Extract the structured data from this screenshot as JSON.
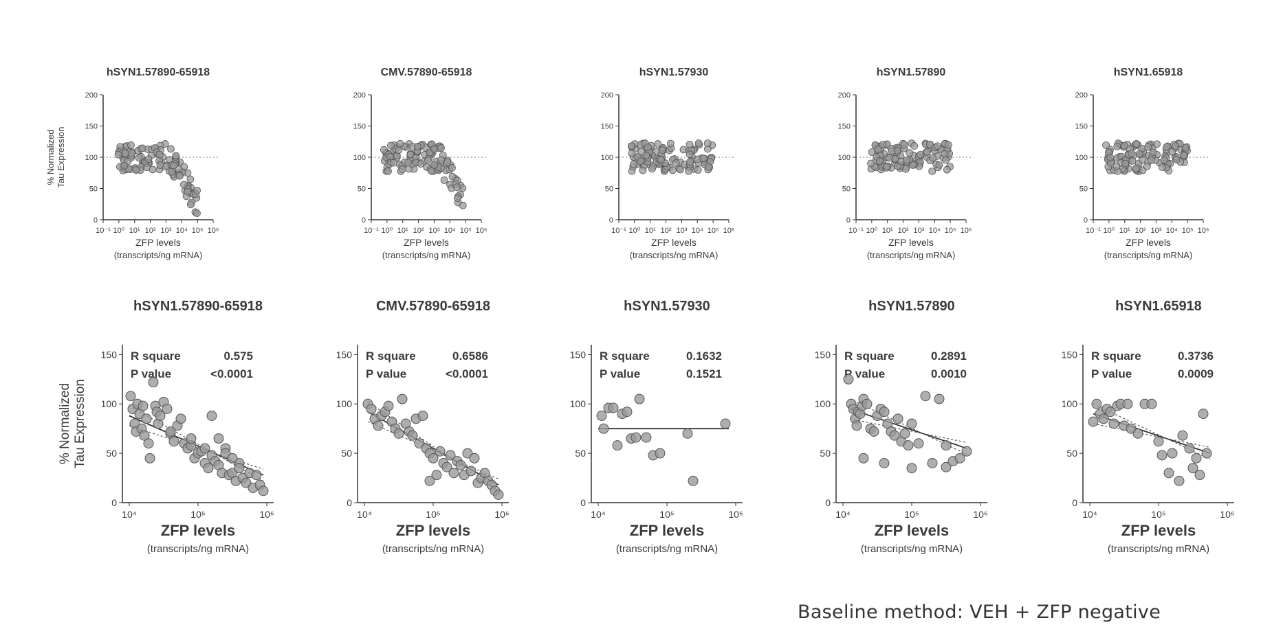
{
  "footer_text": "Baseline method: VEH + ZFP negative",
  "colors": {
    "marker_fill": "#9a9a9a",
    "marker_stroke": "#555555",
    "axis": "#333333",
    "text": "#3a3a3a"
  },
  "chart_data": [
    {
      "type": "scatter",
      "row": "top",
      "title": "hSYN1.57890-65918",
      "ylabel": "% Normalized Tau Expression",
      "xlabel": "ZFP levels",
      "xlabel_sub": "(transcripts/ng mRNA)",
      "xscale": "log",
      "xlim": [
        -1,
        6
      ],
      "ylim": [
        0,
        200
      ],
      "x_ticks": [
        "10⁻¹",
        "10⁰",
        "10¹",
        "10²",
        "10³",
        "10⁴",
        "10⁵",
        "10⁶"
      ],
      "y_ticks": [
        "0",
        "50",
        "100",
        "150",
        "200"
      ],
      "reference_line": 100,
      "x": [],
      "y": []
    },
    {
      "type": "scatter",
      "row": "top",
      "title": "CMV.57890-65918",
      "ylabel": "",
      "xlabel": "ZFP levels",
      "xlabel_sub": "(transcripts/ng mRNA)",
      "xscale": "log",
      "xlim": [
        -1,
        6
      ],
      "ylim": [
        0,
        200
      ],
      "x_ticks": [
        "10⁻¹",
        "10⁰",
        "10¹",
        "10²",
        "10³",
        "10⁴",
        "10⁵",
        "10⁶"
      ],
      "y_ticks": [
        "0",
        "50",
        "100",
        "150",
        "200"
      ],
      "reference_line": 100,
      "x": [],
      "y": []
    },
    {
      "type": "scatter",
      "row": "top",
      "title": "hSYN1.57930",
      "ylabel": "",
      "xlabel": "ZFP levels",
      "xlabel_sub": "(transcripts/ng mRNA)",
      "xscale": "log",
      "xlim": [
        -1,
        6
      ],
      "ylim": [
        0,
        200
      ],
      "x_ticks": [
        "10⁻¹",
        "10⁰",
        "10¹",
        "10²",
        "10³",
        "10⁴",
        "10⁵",
        "10⁶"
      ],
      "y_ticks": [
        "0",
        "50",
        "100",
        "150",
        "200"
      ],
      "reference_line": 100,
      "x": [],
      "y": []
    },
    {
      "type": "scatter",
      "row": "top",
      "title": "hSYN1.57890",
      "ylabel": "",
      "xlabel": "ZFP levels",
      "xlabel_sub": "(transcripts/ng mRNA)",
      "xscale": "log",
      "xlim": [
        -1,
        6
      ],
      "ylim": [
        0,
        200
      ],
      "x_ticks": [
        "10⁻¹",
        "10⁰",
        "10¹",
        "10²",
        "10³",
        "10⁴",
        "10⁵",
        "10⁶"
      ],
      "y_ticks": [
        "0",
        "50",
        "100",
        "150",
        "200"
      ],
      "reference_line": 100,
      "x": [],
      "y": []
    },
    {
      "type": "scatter",
      "row": "top",
      "title": "hSYN1.65918",
      "ylabel": "",
      "xlabel": "ZFP levels",
      "xlabel_sub": "(transcripts/ng mRNA)",
      "xscale": "log",
      "xlim": [
        -1,
        6
      ],
      "ylim": [
        0,
        200
      ],
      "x_ticks": [
        "10⁻¹",
        "10⁰",
        "10¹",
        "10²",
        "10³",
        "10⁴",
        "10⁵",
        "10⁶"
      ],
      "y_ticks": [
        "0",
        "50",
        "100",
        "150",
        "200"
      ],
      "reference_line": 100,
      "x": [],
      "y": []
    },
    {
      "type": "scatter",
      "row": "bottom",
      "title": "hSYN1.57890-65918",
      "ylabel": "% Normalized Tau Expression",
      "xlabel": "ZFP levels",
      "xlabel_sub": "(transcripts/ng mRNA)",
      "xscale": "log",
      "xlim": [
        3.9,
        6.1
      ],
      "ylim": [
        0,
        160
      ],
      "x_ticks": [
        "10⁴",
        "10⁵",
        "10⁶"
      ],
      "y_ticks": [
        "0",
        "50",
        "100",
        "150"
      ],
      "stats": [
        {
          "label": "R square",
          "value": "0.575"
        },
        {
          "label": "P value",
          "value": "<0.0001"
        }
      ],
      "fit": {
        "x": [
          4.0,
          5.95
        ],
        "y": [
          88,
          28
        ]
      },
      "x": [
        4.02,
        4.05,
        4.08,
        4.1,
        4.12,
        4.15,
        4.18,
        4.2,
        4.22,
        4.25,
        4.28,
        4.3,
        4.35,
        4.38,
        4.4,
        4.42,
        4.45,
        4.5,
        4.55,
        4.6,
        4.65,
        4.7,
        4.75,
        4.8,
        4.85,
        4.9,
        4.95,
        5.0,
        5.05,
        5.1,
        5.15,
        5.2,
        5.25,
        5.3,
        5.35,
        5.4,
        5.45,
        5.5,
        5.55,
        5.6,
        5.65,
        5.7,
        5.75,
        5.8,
        5.85,
        5.9,
        5.95,
        5.2,
        5.3,
        5.4,
        5.5,
        5.6,
        4.6,
        4.9,
        5.1
      ],
      "y": [
        108,
        95,
        80,
        72,
        100,
        90,
        75,
        98,
        68,
        85,
        60,
        45,
        122,
        98,
        92,
        80,
        88,
        102,
        95,
        70,
        62,
        78,
        85,
        60,
        55,
        58,
        45,
        50,
        52,
        40,
        35,
        48,
        42,
        38,
        30,
        55,
        28,
        30,
        22,
        40,
        25,
        20,
        30,
        15,
        28,
        18,
        12,
        88,
        65,
        50,
        45,
        35,
        72,
        65,
        55
      ]
    },
    {
      "type": "scatter",
      "row": "bottom",
      "title": "CMV.57890-65918",
      "ylabel": "",
      "xlabel": "ZFP levels",
      "xlabel_sub": "(transcripts/ng mRNA)",
      "xscale": "log",
      "xlim": [
        3.9,
        6.1
      ],
      "ylim": [
        0,
        160
      ],
      "x_ticks": [
        "10⁴",
        "10⁵",
        "10⁶"
      ],
      "y_ticks": [
        "0",
        "50",
        "100",
        "150"
      ],
      "stats": [
        {
          "label": "R square",
          "value": "0.6586"
        },
        {
          "label": "P value",
          "value": "<0.0001"
        }
      ],
      "fit": {
        "x": [
          4.05,
          5.95
        ],
        "y": [
          92,
          18
        ]
      },
      "x": [
        4.05,
        4.1,
        4.15,
        4.2,
        4.25,
        4.3,
        4.35,
        4.4,
        4.45,
        4.5,
        4.55,
        4.6,
        4.65,
        4.7,
        4.75,
        4.8,
        4.85,
        4.9,
        4.95,
        5.0,
        5.05,
        5.1,
        5.15,
        5.2,
        5.25,
        5.3,
        5.35,
        5.4,
        5.45,
        5.5,
        5.55,
        5.6,
        5.65,
        5.7,
        5.75,
        5.8,
        5.85,
        5.9,
        5.95,
        4.95
      ],
      "y": [
        100,
        95,
        85,
        78,
        88,
        92,
        98,
        82,
        75,
        70,
        105,
        80,
        72,
        68,
        85,
        60,
        88,
        55,
        50,
        45,
        28,
        52,
        40,
        36,
        48,
        30,
        42,
        38,
        28,
        50,
        32,
        45,
        20,
        25,
        30,
        22,
        18,
        12,
        8,
        22
      ]
    },
    {
      "type": "scatter",
      "row": "bottom",
      "title": "hSYN1.57930",
      "ylabel": "",
      "xlabel": "ZFP levels",
      "xlabel_sub": "(transcripts/ng mRNA)",
      "xscale": "log",
      "xlim": [
        3.9,
        6.1
      ],
      "ylim": [
        0,
        160
      ],
      "x_ticks": [
        "10⁴",
        "10⁵",
        "10⁶"
      ],
      "y_ticks": [
        "0",
        "50",
        "100",
        "150"
      ],
      "stats": [
        {
          "label": "R square",
          "value": "0.1632"
        },
        {
          "label": "P value",
          "value": "0.1521"
        }
      ],
      "fit": {
        "x": [
          4.0,
          5.9
        ],
        "y": [
          75,
          75
        ]
      },
      "x": [
        4.05,
        4.08,
        4.15,
        4.22,
        4.28,
        4.35,
        4.42,
        4.48,
        4.55,
        4.6,
        4.7,
        4.8,
        4.9,
        5.3,
        5.38,
        5.85
      ],
      "y": [
        88,
        75,
        96,
        96,
        58,
        90,
        92,
        65,
        66,
        105,
        66,
        48,
        50,
        70,
        22,
        80
      ]
    },
    {
      "type": "scatter",
      "row": "bottom",
      "title": "hSYN1.57890",
      "ylabel": "",
      "xlabel": "ZFP levels",
      "xlabel_sub": "(transcripts/ng mRNA)",
      "xscale": "log",
      "xlim": [
        3.9,
        6.1
      ],
      "ylim": [
        0,
        160
      ],
      "x_ticks": [
        "10⁴",
        "10⁵",
        "10⁶"
      ],
      "y_ticks": [
        "0",
        "50",
        "100",
        "150"
      ],
      "stats": [
        {
          "label": "R square",
          "value": "0.2891"
        },
        {
          "label": "P value",
          "value": "0.0010"
        }
      ],
      "fit": {
        "x": [
          4.1,
          5.8
        ],
        "y": [
          95,
          55
        ]
      },
      "x": [
        4.08,
        4.12,
        4.15,
        4.18,
        4.2,
        4.22,
        4.25,
        4.28,
        4.3,
        4.35,
        4.4,
        4.45,
        4.5,
        4.55,
        4.6,
        4.65,
        4.7,
        4.75,
        4.8,
        4.85,
        4.9,
        4.95,
        5.0,
        5.1,
        5.2,
        5.3,
        5.4,
        5.5,
        5.6,
        5.7,
        5.8,
        4.3,
        4.6,
        5.0,
        5.5
      ],
      "y": [
        125,
        100,
        95,
        85,
        78,
        92,
        90,
        98,
        105,
        100,
        75,
        72,
        88,
        95,
        92,
        80,
        72,
        68,
        85,
        62,
        70,
        58,
        80,
        60,
        108,
        40,
        105,
        36,
        42,
        45,
        52,
        45,
        40,
        35,
        58
      ]
    },
    {
      "type": "scatter",
      "row": "bottom",
      "title": "hSYN1.65918",
      "ylabel": "",
      "xlabel": "ZFP levels",
      "xlabel_sub": "(transcripts/ng mRNA)",
      "xscale": "log",
      "xlim": [
        3.9,
        6.1
      ],
      "ylim": [
        0,
        160
      ],
      "x_ticks": [
        "10⁴",
        "10⁵",
        "10⁶"
      ],
      "y_ticks": [
        "0",
        "50",
        "100",
        "150"
      ],
      "stats": [
        {
          "label": "R square",
          "value": "0.3736"
        },
        {
          "label": "P value",
          "value": "0.0009"
        }
      ],
      "fit": {
        "x": [
          4.05,
          5.75
        ],
        "y": [
          90,
          50
        ]
      },
      "x": [
        4.05,
        4.1,
        4.15,
        4.2,
        4.25,
        4.3,
        4.35,
        4.4,
        4.45,
        4.5,
        4.55,
        4.6,
        4.7,
        4.8,
        4.9,
        5.0,
        5.05,
        5.15,
        5.2,
        5.3,
        5.35,
        5.45,
        5.5,
        5.55,
        5.6,
        5.65,
        5.7
      ],
      "y": [
        82,
        100,
        90,
        85,
        95,
        92,
        80,
        98,
        100,
        78,
        100,
        75,
        70,
        100,
        100,
        62,
        48,
        30,
        50,
        22,
        68,
        55,
        35,
        45,
        28,
        90,
        50
      ]
    }
  ]
}
